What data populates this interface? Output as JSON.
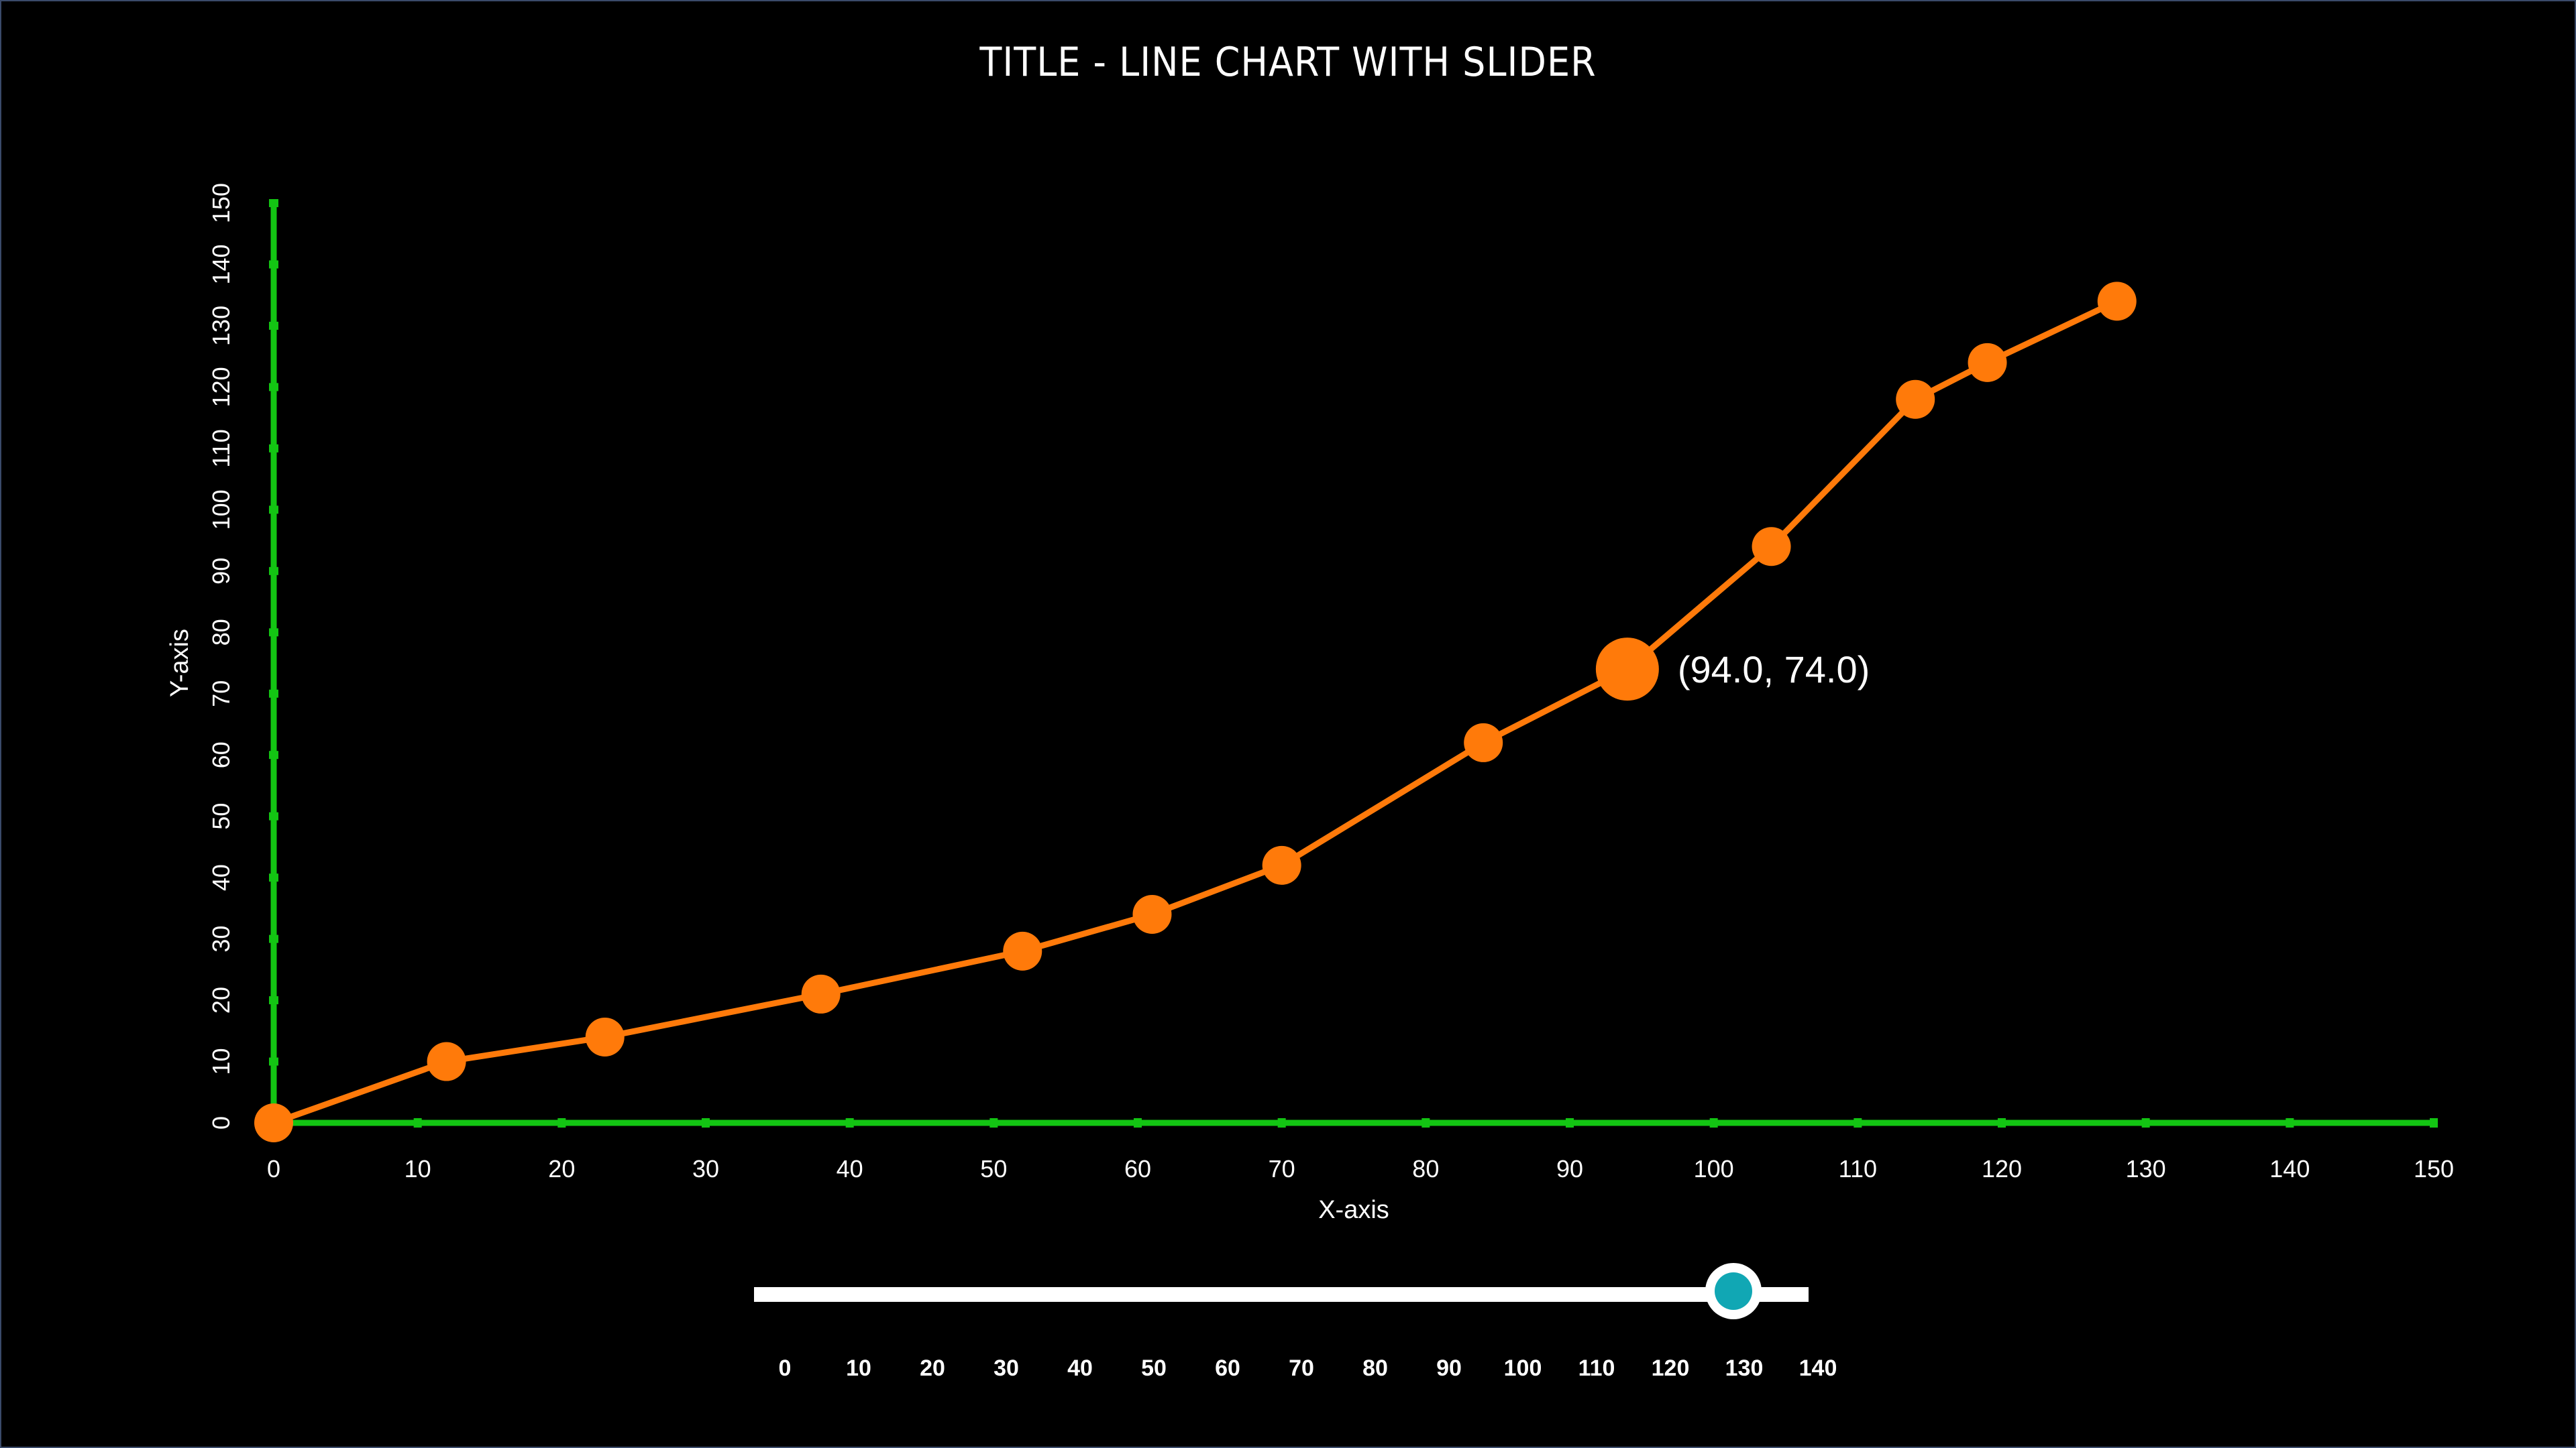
{
  "title": "TITLE - LINE CHART WITH SLIDER",
  "colors": {
    "background": "#000000",
    "axis": "#13c513",
    "line": "#ff7a0a",
    "text": "#ffffff",
    "slider_rail": "#ffffff",
    "slider_handle": "#11a7b4"
  },
  "chart_data": {
    "type": "line",
    "title": "TITLE - LINE CHART WITH SLIDER",
    "xlabel": "X-axis",
    "ylabel": "Y-axis",
    "xlim": [
      0,
      150
    ],
    "ylim": [
      0,
      150
    ],
    "xticks": [
      0,
      10,
      20,
      30,
      40,
      50,
      60,
      70,
      80,
      90,
      100,
      110,
      120,
      130,
      140,
      150
    ],
    "yticks": [
      0,
      10,
      20,
      30,
      40,
      50,
      60,
      70,
      80,
      90,
      100,
      110,
      120,
      130,
      140,
      150
    ],
    "grid": false,
    "series": [
      {
        "x": [
          0,
          12,
          23,
          38,
          52,
          61,
          70,
          84,
          94,
          104,
          114,
          119,
          128
        ],
        "y": [
          0,
          10,
          14,
          21,
          28,
          34,
          42,
          62,
          74,
          94,
          118,
          124,
          134
        ]
      }
    ],
    "highlight": {
      "x": 94.0,
      "y": 74.0,
      "label": "(94.0, 74.0)"
    }
  },
  "slider": {
    "min": 0,
    "max": 140,
    "value": 130,
    "marks": [
      "0",
      "10",
      "20",
      "30",
      "40",
      "50",
      "60",
      "70",
      "80",
      "90",
      "100",
      "110",
      "120",
      "130",
      "140"
    ]
  }
}
